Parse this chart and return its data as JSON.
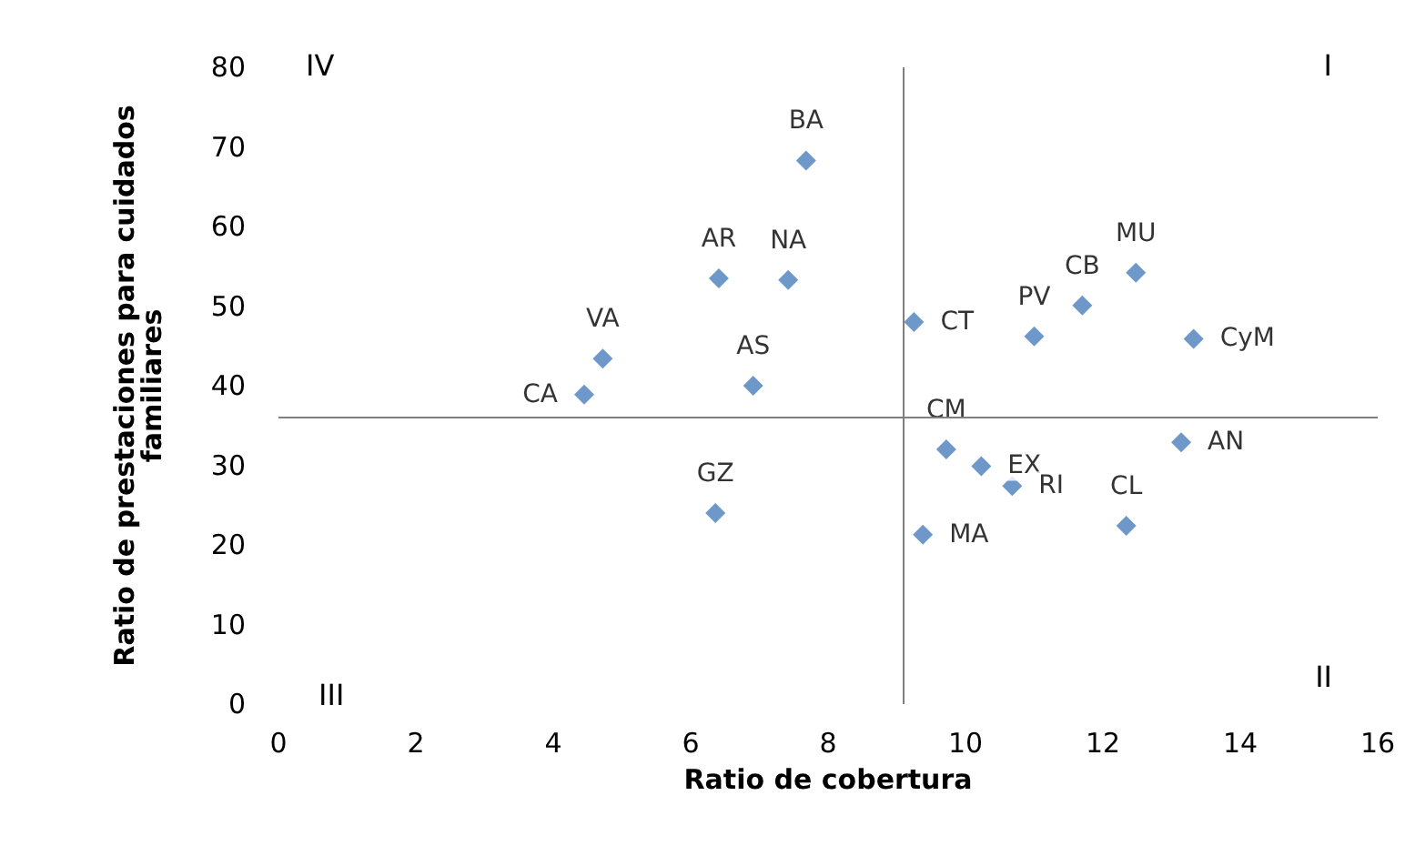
{
  "chart_data": {
    "type": "scatter",
    "xlabel": "Ratio de cobertura",
    "ylabel": "Ratio de prestaciones para cuidados familiares",
    "xlim": [
      0,
      16
    ],
    "xticks": [
      0,
      2,
      4,
      6,
      8,
      10,
      12,
      14,
      16
    ],
    "ylim": [
      0,
      80
    ],
    "yticks": [
      0,
      10,
      20,
      30,
      40,
      50,
      60,
      70,
      80
    ],
    "grid": false,
    "marker": "diamond",
    "series": [
      {
        "color": "#4a7ebb",
        "x": [
          7.68,
          6.41,
          7.42,
          4.72,
          4.45,
          6.91,
          6.36,
          9.25,
          9.72,
          10.23,
          10.68,
          9.38,
          11.0,
          11.7,
          12.48,
          13.32,
          13.14,
          12.34
        ],
        "values": [
          68.3,
          53.5,
          53.3,
          43.4,
          38.9,
          40,
          24,
          48,
          32,
          29.9,
          27.4,
          21.3,
          46.2,
          50.1,
          54.2,
          45.9,
          32.9,
          22.4
        ],
        "value_labels": [
          "BA",
          "AR",
          "NA",
          "VA",
          "CA",
          "AS",
          "GZ",
          "CT",
          "CM",
          "EX",
          "RI",
          "MA",
          "PV",
          "CB",
          "MU",
          "CyM",
          "AN",
          "CL"
        ]
      }
    ],
    "ref_lines": [
      {
        "axis": "x",
        "value": 9.1,
        "color": "#7f7f7f"
      },
      {
        "axis": "y",
        "value": 36,
        "color": "#7f7f7f"
      }
    ],
    "annotations": [
      "I",
      "II",
      "III",
      "IV"
    ]
  }
}
